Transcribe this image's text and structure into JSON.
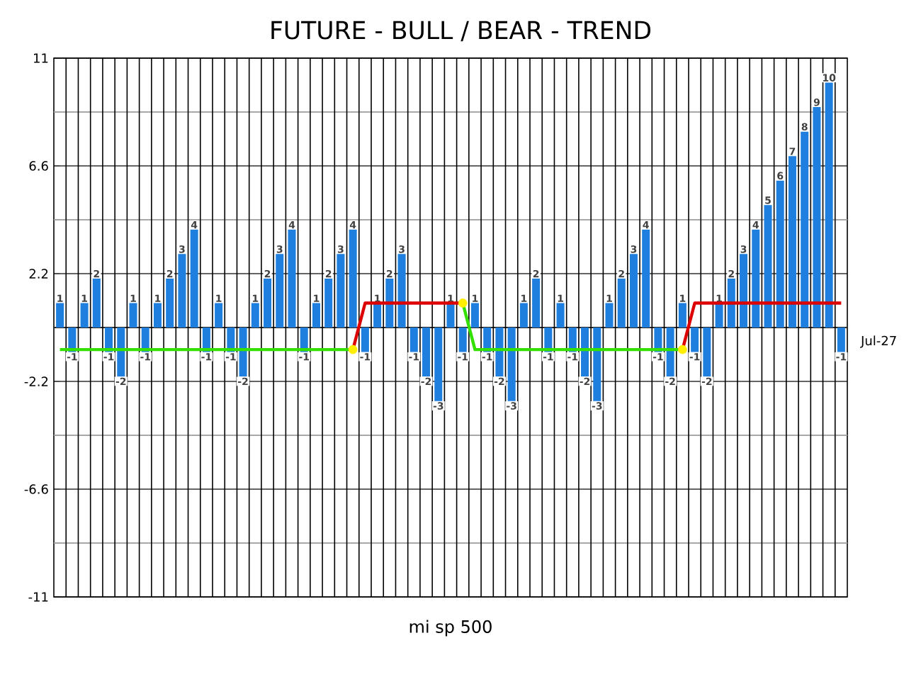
{
  "chart_data": {
    "type": "bar",
    "title": "FUTURE - BULL / BEAR - TREND",
    "xlabel": "mi sp 500",
    "annotations": [
      "Jul-27"
    ],
    "categories": [
      null,
      null,
      null,
      null,
      null,
      null,
      null,
      null,
      null,
      null,
      null,
      null,
      null,
      null,
      null,
      null,
      null,
      null,
      null,
      null,
      null,
      null,
      null,
      null,
      null,
      null,
      null,
      null,
      null,
      null,
      null,
      null,
      null,
      null,
      null,
      null,
      null,
      null,
      null,
      null,
      null,
      null,
      null,
      null,
      null,
      null,
      null,
      null,
      null,
      null,
      null,
      null,
      null,
      null,
      null,
      null,
      null,
      null,
      null,
      null,
      null,
      null,
      null,
      null,
      null
    ],
    "series": [
      {
        "type": "bar",
        "color": "#1f7fdf",
        "values": [
          1,
          -1,
          1,
          2,
          -1,
          -2,
          1,
          -1,
          1,
          2,
          3,
          4,
          -1,
          1,
          -1,
          -2,
          1,
          2,
          3,
          4,
          -1,
          1,
          2,
          3,
          4,
          -1,
          1,
          2,
          3,
          -1,
          -2,
          -3,
          1,
          -1,
          1,
          -1,
          -2,
          -3,
          1,
          2,
          -1,
          1,
          -1,
          -2,
          -3,
          1,
          2,
          3,
          4,
          -1,
          -2,
          1,
          -1,
          -2,
          1,
          2,
          3,
          4,
          5,
          6,
          7,
          8,
          9,
          10,
          -1
        ],
        "value_labels": [
          "1",
          "-1",
          "1",
          "2",
          "-1",
          "-2",
          "1",
          "-1",
          "1",
          "2",
          "3",
          "4",
          "-1",
          "1",
          "-1",
          "-2",
          "1",
          "2",
          "3",
          "4",
          "-1",
          "1",
          "2",
          "3",
          "4",
          "-1",
          "1",
          "2",
          "3",
          "-1",
          "-2",
          "-3",
          "1",
          "-1",
          "1",
          "-1",
          "-2",
          "-3",
          "1",
          "2",
          "-1",
          "1",
          "-1",
          "-2",
          "-3",
          "1",
          "2",
          "3",
          "4",
          "-1",
          "-2",
          "1",
          "-1",
          "-2",
          "1",
          "2",
          "3",
          "4",
          "5",
          "6",
          "7",
          "8",
          "9",
          "10",
          "-1"
        ]
      },
      {
        "type": "line",
        "color": "#33e000",
        "values": [
          -0.9,
          -0.9,
          -0.9,
          -0.9,
          -0.9,
          -0.9,
          -0.9,
          -0.9,
          -0.9,
          -0.9,
          -0.9,
          -0.9,
          -0.9,
          -0.9,
          -0.9,
          -0.9,
          -0.9,
          -0.9,
          -0.9,
          -0.9,
          -0.9,
          -0.9,
          -0.9,
          -0.9,
          -0.9,
          null,
          null,
          null,
          null,
          null,
          null,
          null,
          null,
          1,
          -0.9,
          -0.9,
          -0.9,
          -0.9,
          -0.9,
          -0.9,
          -0.9,
          -0.9,
          -0.9,
          -0.9,
          -0.9,
          -0.9,
          -0.9,
          -0.9,
          -0.9,
          -0.9,
          -0.9,
          -0.9,
          null,
          null,
          null,
          null,
          null,
          null,
          null,
          null,
          null,
          null,
          null,
          null,
          null
        ]
      },
      {
        "type": "line",
        "color": "#dd0000",
        "values": [
          null,
          null,
          null,
          null,
          null,
          null,
          null,
          null,
          null,
          null,
          null,
          null,
          null,
          null,
          null,
          null,
          null,
          null,
          null,
          null,
          null,
          null,
          null,
          null,
          -0.9,
          1,
          1,
          1,
          1,
          1,
          1,
          1,
          1,
          1,
          null,
          null,
          null,
          null,
          null,
          null,
          null,
          null,
          null,
          null,
          null,
          null,
          null,
          null,
          null,
          null,
          null,
          -0.9,
          1,
          1,
          1,
          1,
          1,
          1,
          1,
          1,
          1,
          1,
          1,
          1,
          1
        ]
      },
      {
        "type": "scatter",
        "color": "#ffee00",
        "marker": "circle",
        "values": [
          null,
          null,
          null,
          null,
          null,
          null,
          null,
          null,
          null,
          null,
          null,
          null,
          null,
          null,
          null,
          null,
          null,
          null,
          null,
          null,
          null,
          null,
          null,
          null,
          -0.9,
          null,
          null,
          null,
          null,
          null,
          null,
          null,
          null,
          1,
          null,
          null,
          null,
          null,
          null,
          null,
          null,
          null,
          null,
          null,
          null,
          null,
          null,
          null,
          null,
          null,
          null,
          -0.9,
          null,
          null,
          null,
          null,
          null,
          null,
          null,
          null,
          null,
          null,
          null,
          null,
          null
        ]
      }
    ],
    "ylim": [
      -11,
      11
    ],
    "yticks": [
      -11,
      {
        "value": -8.8,
        "label": null
      },
      -6.6,
      {
        "value": -4.4,
        "label": null
      },
      -2.2,
      {
        "value": 0,
        "label": null
      },
      2.2,
      {
        "value": 4.4,
        "label": null
      },
      6.6,
      {
        "value": 8.8,
        "label": null
      },
      11
    ],
    "tick_labels": "y",
    "grid": true
  }
}
